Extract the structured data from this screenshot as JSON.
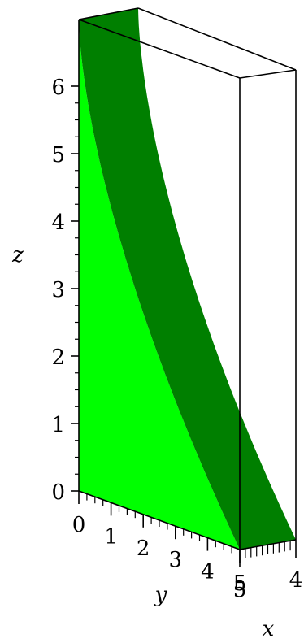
{
  "chart_data": {
    "type": "surface-3d",
    "axes": {
      "x": {
        "label": "x",
        "ticks": [
          "4",
          "5"
        ]
      },
      "y": {
        "label": "y",
        "ticks": [
          "0",
          "1",
          "2",
          "3",
          "4",
          "5"
        ]
      },
      "z": {
        "label": "z",
        "ticks": [
          "0",
          "1",
          "2",
          "3",
          "4",
          "5",
          "6"
        ]
      }
    },
    "colors": {
      "front_face": "#00ff00",
      "curved_face": "#007f00",
      "box_edge": "#000000",
      "background": "#ffffff"
    }
  }
}
